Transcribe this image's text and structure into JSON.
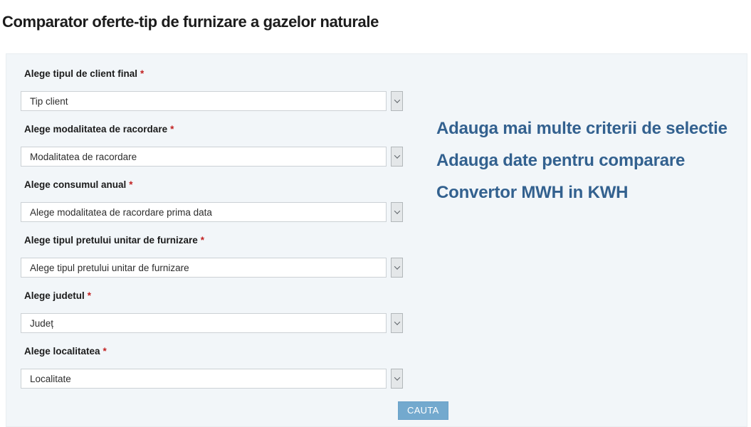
{
  "page": {
    "title": "Comparator oferte-tip de furnizare a gazelor naturale"
  },
  "form": {
    "required_marker": "*",
    "fields": [
      {
        "label": "Alege tipul de client final",
        "value": "Tip client"
      },
      {
        "label": "Alege modalitatea de racordare",
        "value": "Modalitatea de racordare"
      },
      {
        "label": "Alege consumul anual",
        "value": "Alege modalitatea de racordare prima data"
      },
      {
        "label": "Alege tipul pretului unitar de furnizare",
        "value": "Alege tipul pretului unitar de furnizare"
      },
      {
        "label": "Alege judetul",
        "value": "Județ"
      },
      {
        "label": "Alege localitatea",
        "value": "Localitate"
      }
    ],
    "submit_label": "CAUTA"
  },
  "links": [
    {
      "label": "Adauga mai multe criterii de selectie"
    },
    {
      "label": "Adauga date pentru comparare"
    },
    {
      "label": "Convertor MWH in KWH"
    }
  ],
  "colors": {
    "accent_button_blue": "#73a9ce",
    "link_blue": "#33618f",
    "panel_bg": "#f2f6f9",
    "required_red": "#c22222"
  }
}
